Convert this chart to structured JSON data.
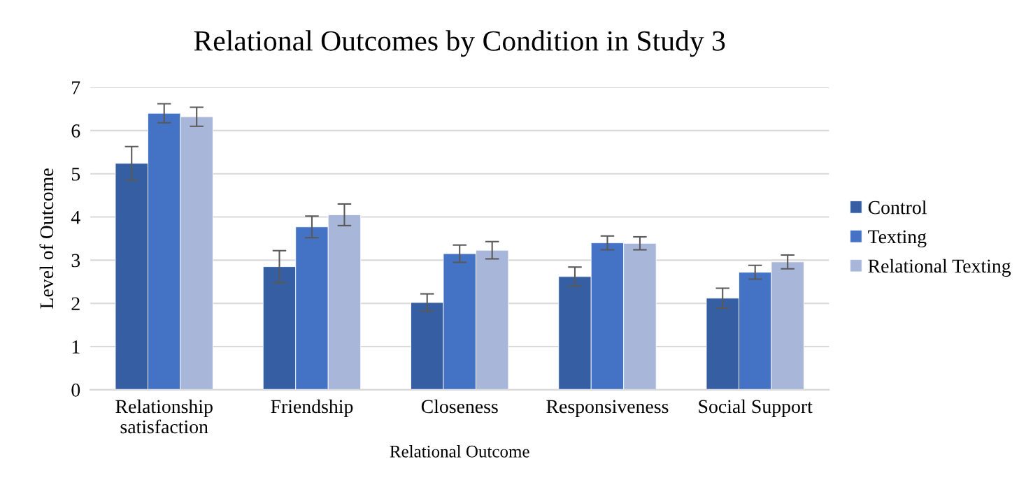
{
  "chart_data": {
    "type": "bar",
    "title": "Relational Outcomes by Condition in Study 3",
    "xlabel": "Relational Outcome",
    "ylabel": "Level of Outcome",
    "categories": [
      "Relationship\nsatisfaction",
      "Friendship",
      "Closeness",
      "Responsiveness",
      "Social Support"
    ],
    "series": [
      {
        "name": "Control",
        "color": "#365ea3",
        "values": [
          5.24,
          2.85,
          2.02,
          2.62,
          2.12
        ],
        "errors": [
          0.39,
          0.37,
          0.2,
          0.22,
          0.23
        ]
      },
      {
        "name": "Texting",
        "color": "#4472c4",
        "values": [
          6.4,
          3.77,
          3.15,
          3.4,
          2.72
        ],
        "errors": [
          0.22,
          0.25,
          0.2,
          0.16,
          0.16
        ]
      },
      {
        "name": "Relational Texting",
        "color": "#a8b6da",
        "values": [
          6.32,
          4.05,
          3.23,
          3.39,
          2.96
        ],
        "errors": [
          0.22,
          0.25,
          0.2,
          0.15,
          0.16
        ]
      }
    ],
    "ylim": [
      0,
      7
    ],
    "yticks": [
      0,
      1,
      2,
      3,
      4,
      5,
      6,
      7
    ],
    "grid": "y",
    "legend": "right"
  }
}
